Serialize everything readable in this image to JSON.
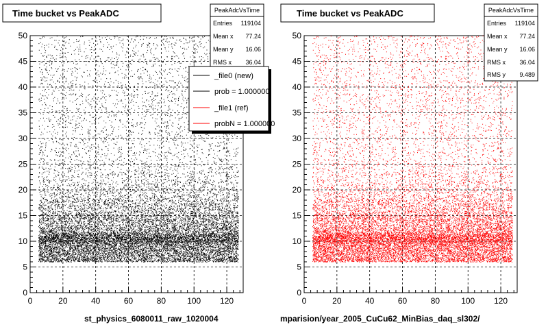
{
  "chart_data": [
    {
      "type": "scatter",
      "title": "Time bucket vs PeakADC",
      "xlabel": "st_physics_6080011_raw_1020004",
      "ylabel": "",
      "xlim": [
        0,
        130
      ],
      "ylim": [
        0,
        50
      ],
      "x_ticks": [
        0,
        20,
        40,
        60,
        80,
        100,
        120
      ],
      "y_ticks": [
        0,
        5,
        10,
        15,
        20,
        25,
        30,
        35,
        40,
        45,
        50
      ],
      "grid": true,
      "series_color": "#000000",
      "stats": {
        "name": "PeakAdcVsTime",
        "rows": [
          {
            "label": "Entries",
            "value": "119104"
          },
          {
            "label": "Mean x",
            "value": "77.24"
          },
          {
            "label": "Mean y",
            "value": "16.06"
          },
          {
            "label": "RMS x",
            "value": "36.04"
          }
        ]
      },
      "legend": {
        "placement": "top-right",
        "entries": [
          {
            "label": "_file0 (new)",
            "color": "#000000"
          },
          {
            "label": "prob = 1.000000",
            "color": "#000000"
          },
          {
            "label": "_file1 (ref)",
            "color": "#ff0000"
          },
          {
            "label": "probN = 1.000000",
            "color": "#ff0000"
          }
        ]
      }
    },
    {
      "type": "scatter",
      "title": "Time bucket vs PeakADC",
      "xlabel": "mparision/year_2005_CuCu62_MinBias_daq_sl302/",
      "ylabel": "",
      "xlim": [
        0,
        130
      ],
      "ylim": [
        0,
        50
      ],
      "x_ticks": [
        0,
        20,
        40,
        60,
        80,
        100,
        120
      ],
      "y_ticks": [
        0,
        5,
        10,
        15,
        20,
        25,
        30,
        35,
        40,
        45,
        50
      ],
      "grid": true,
      "series_color": "#ff0000",
      "stats": {
        "name": "PeakAdcVsTime",
        "rows": [
          {
            "label": "Entries",
            "value": "119104"
          },
          {
            "label": "Mean x",
            "value": "77.24"
          },
          {
            "label": "Mean y",
            "value": "16.06"
          },
          {
            "label": "RMS x",
            "value": "36.04"
          },
          {
            "label": "RMS y",
            "value": "9.489"
          }
        ]
      }
    }
  ]
}
